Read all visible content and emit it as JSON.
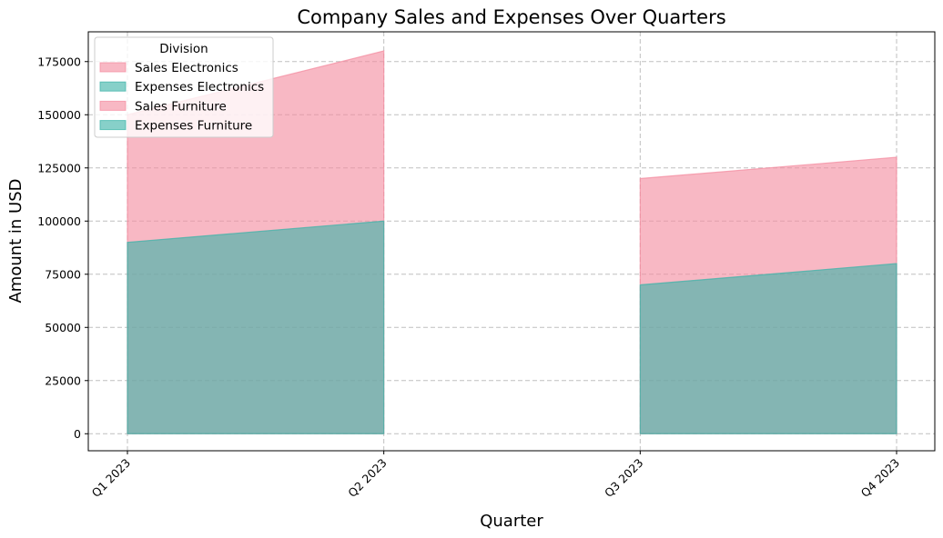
{
  "chart_data": {
    "type": "area",
    "title": "Company Sales and Expenses Over Quarters",
    "xlabel": "Quarter",
    "ylabel": "Amount in USD",
    "categories": [
      "Q1 2023",
      "Q2 2023",
      "Q3 2023",
      "Q4 2023"
    ],
    "ylim": [
      -8000,
      189000
    ],
    "yticks": [
      0,
      25000,
      50000,
      75000,
      100000,
      125000,
      150000,
      175000
    ],
    "grid": true,
    "legend": {
      "title": "Division",
      "placement": "top-left",
      "entries": [
        "Sales Electronics",
        "Expenses Electronics",
        "Sales Furniture",
        "Expenses Furniture"
      ]
    },
    "series": [
      {
        "name": "Sales Electronics",
        "kind": "sales",
        "values": [
          150000,
          180000,
          null,
          null
        ]
      },
      {
        "name": "Expenses Electronics",
        "kind": "expenses",
        "values": [
          90000,
          100000,
          null,
          null
        ]
      },
      {
        "name": "Sales Furniture",
        "kind": "sales",
        "values": [
          null,
          null,
          120000,
          130000
        ]
      },
      {
        "name": "Expenses Furniture",
        "kind": "expenses",
        "values": [
          null,
          null,
          70000,
          80000
        ]
      }
    ],
    "colors": {
      "sales": "#f48ca0",
      "expenses": "#3eb3a8"
    }
  }
}
